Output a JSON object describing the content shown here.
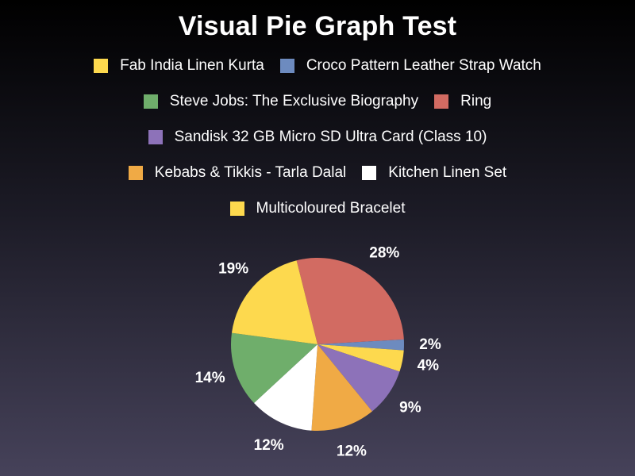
{
  "chart_data": {
    "type": "pie",
    "title": "Visual Pie Graph Test",
    "slices": [
      {
        "label": "Ring",
        "value": 28,
        "display": "28%",
        "color": "#d26b62"
      },
      {
        "label": "Croco Pattern Leather Strap Watch",
        "value": 2,
        "display": "2%",
        "color": "#6d8bbf"
      },
      {
        "label": "Multicoloured Bracelet",
        "value": 4,
        "display": "4%",
        "color": "#fdd94e"
      },
      {
        "label": "Sandisk 32 GB Micro SD Ultra Card (Class 10)",
        "value": 9,
        "display": "9%",
        "color": "#8d72b9"
      },
      {
        "label": "Kebabs & Tikkis - Tarla Dalal",
        "value": 12,
        "display": "12%",
        "color": "#f0aa45"
      },
      {
        "label": "Kitchen Linen Set",
        "value": 12,
        "display": "12%",
        "color": "#ffffff"
      },
      {
        "label": "Steve Jobs: The Exclusive Biography",
        "value": 14,
        "display": "14%",
        "color": "#6fae6b"
      },
      {
        "label": "Fab India Linen Kurta",
        "value": 19,
        "display": "19%",
        "color": "#fdd94e"
      }
    ],
    "legend": {
      "placement": "top",
      "rows": [
        [
          {
            "label": "Fab India Linen Kurta",
            "color": "#fdd94e"
          },
          {
            "label": "Croco Pattern Leather Strap Watch",
            "color": "#6d8bbf"
          }
        ],
        [
          {
            "label": "Steve Jobs: The Exclusive Biography",
            "color": "#6fae6b"
          },
          {
            "label": "Ring",
            "color": "#d26b62"
          }
        ],
        [
          {
            "label": "Sandisk 32 GB Micro SD Ultra Card (Class 10)",
            "color": "#8d72b9"
          }
        ],
        [
          {
            "label": "Kebabs & Tikkis - Tarla Dalal",
            "color": "#f0aa45"
          },
          {
            "label": "Kitchen Linen Set",
            "color": "#ffffff"
          }
        ],
        [
          {
            "label": "Multicoloured Bracelet",
            "color": "#fdd94e"
          }
        ]
      ]
    }
  }
}
